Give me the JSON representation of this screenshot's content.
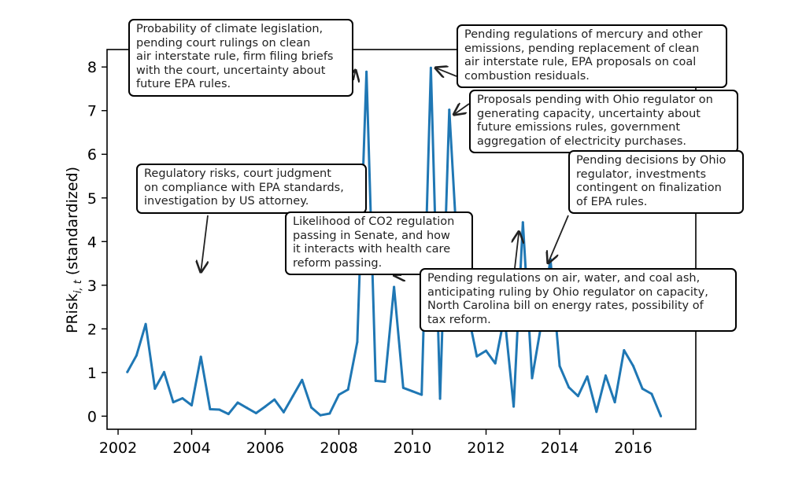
{
  "chart_data": {
    "type": "line",
    "title": "",
    "xlabel": "",
    "ylabel": "PRisk",
    "ylabel_subscript": "i, t",
    "ylabel_suffix": " (standardized)",
    "xlim": [
      2001.7,
      2017.7
    ],
    "ylim": [
      -0.3,
      8.4
    ],
    "xticks": [
      2002,
      2004,
      2006,
      2008,
      2010,
      2012,
      2014,
      2016
    ],
    "yticks": [
      0,
      1,
      2,
      3,
      4,
      5,
      6,
      7,
      8
    ],
    "grid": false,
    "legend": null,
    "series": [
      {
        "name": "PRisk",
        "color": "#1f77b4",
        "x": [
          2002.25,
          2002.5,
          2002.75,
          2003.0,
          2003.25,
          2003.5,
          2003.75,
          2004.0,
          2004.25,
          2004.5,
          2004.75,
          2005.0,
          2005.25,
          2005.5,
          2005.75,
          2006.0,
          2006.25,
          2006.5,
          2006.75,
          2007.0,
          2007.25,
          2007.5,
          2007.75,
          2008.0,
          2008.25,
          2008.5,
          2008.75,
          2009.0,
          2009.25,
          2009.5,
          2009.75,
          2010.0,
          2010.25,
          2010.5,
          2010.75,
          2011.0,
          2011.25,
          2011.5,
          2011.75,
          2012.0,
          2012.25,
          2012.5,
          2012.75,
          2013.0,
          2013.25,
          2013.5,
          2013.75,
          2014.0,
          2014.25,
          2014.5,
          2014.75,
          2015.0,
          2015.25,
          2015.5,
          2015.75,
          2016.0,
          2016.25,
          2016.5,
          2016.75
        ],
        "y": [
          1.01,
          1.39,
          2.11,
          0.63,
          1.01,
          0.32,
          0.41,
          0.25,
          1.36,
          0.16,
          0.15,
          0.05,
          0.31,
          0.19,
          0.07,
          0.22,
          0.38,
          0.09,
          0.46,
          0.83,
          0.2,
          0.02,
          0.06,
          0.49,
          0.61,
          1.7,
          7.89,
          0.81,
          0.79,
          2.96,
          0.65,
          0.57,
          0.49,
          7.98,
          0.4,
          7.02,
          3.3,
          2.4,
          1.37,
          1.5,
          1.21,
          2.3,
          0.22,
          4.44,
          0.87,
          2.1,
          3.6,
          1.15,
          0.66,
          0.46,
          0.91,
          0.1,
          0.93,
          0.32,
          1.51,
          1.15,
          0.63,
          0.51,
          0.0
        ]
      }
    ],
    "annotations": [
      {
        "text": "Probability of climate legislation,\npending court rulings on clean\nair interstate rule, firm filing briefs\nwith the court, uncertainty about\nfuture EPA rules.",
        "target": [
          2008.75,
          7.89
        ]
      },
      {
        "text": "Pending regulations of mercury and other\nemissions, pending replacement of clean\nair interstate rule, EPA proposals on coal\ncombustion residuals.",
        "target": [
          2010.5,
          7.98
        ]
      },
      {
        "text": "Proposals pending with Ohio regulator on\ngenerating capacity, uncertainty about\nfuture emissions rules, government\naggregation of electricity purchases.",
        "target": [
          2011.0,
          7.02
        ]
      },
      {
        "text": "Regulatory risks, court judgment\non compliance with EPA standards,\ninvestigation by US attorney.",
        "target": [
          2004.25,
          1.36
        ]
      },
      {
        "text": "Likelihood of CO2 regulation\npassing in Senate, and how\nit interacts with health care\nreform passing.",
        "target": [
          2009.5,
          2.96
        ]
      },
      {
        "text": "Pending regulations on air, water, and coal ash,\nanticipating ruling by Ohio regulator on capacity,\nNorth Carolina bill on energy rates, possibility of\ntax reform.",
        "target": [
          2013.0,
          4.44
        ]
      },
      {
        "text": "Pending decisions by Ohio\nregulator, investments\ncontingent on finalization\nof EPA rules.",
        "target": [
          2013.75,
          3.6
        ]
      }
    ]
  }
}
